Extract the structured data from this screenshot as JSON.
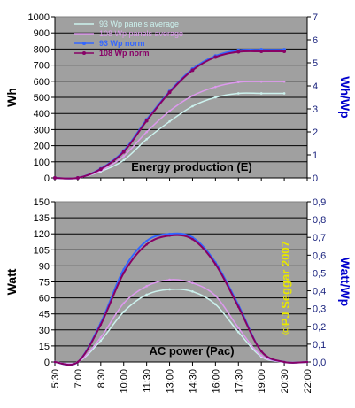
{
  "chart_data": [
    {
      "type": "line",
      "title": "Energy production (E)",
      "ylabel": "Wh",
      "y2label": "Wh/Wp",
      "ylim": [
        0,
        1000
      ],
      "y2lim": [
        0,
        7
      ],
      "yticks": [
        "0",
        "100",
        "200",
        "300",
        "400",
        "500",
        "600",
        "700",
        "800",
        "900",
        "1000"
      ],
      "y2ticks": [
        "0",
        "1",
        "2",
        "3",
        "4",
        "5",
        "6",
        "7"
      ],
      "x": [
        "5:30",
        "7:00",
        "8:30",
        "10:00",
        "11:30",
        "13:00",
        "14:30",
        "16:00",
        "17:30",
        "19:00",
        "20:30"
      ],
      "series": [
        {
          "name": "93 Wp panels average",
          "axis": "left",
          "color": "#ccf2ee",
          "marker": "line",
          "values": [
            0,
            0,
            40,
            110,
            240,
            350,
            445,
            500,
            525,
            525,
            525
          ]
        },
        {
          "name": "108 Wp panels average",
          "axis": "left",
          "color": "#dd99ee",
          "marker": "line",
          "values": [
            0,
            0,
            45,
            135,
            285,
            415,
            510,
            565,
            595,
            598,
            598
          ]
        },
        {
          "name": "93 Wp norm",
          "axis": "right",
          "color": "#3366ff",
          "marker": "dot",
          "values": [
            0,
            0,
            0.4,
            1.17,
            2.53,
            3.76,
            4.73,
            5.3,
            5.55,
            5.57,
            5.57
          ]
        },
        {
          "name": "108 Wp norm",
          "axis": "right",
          "color": "#880066",
          "marker": "dot",
          "values": [
            0,
            0,
            0.38,
            1.13,
            2.48,
            3.72,
            4.68,
            5.25,
            5.48,
            5.5,
            5.5
          ]
        }
      ]
    },
    {
      "type": "line",
      "title": "AC power (Pac)",
      "ylabel": "Watt",
      "y2label": "Watt/Wp",
      "ylim": [
        0,
        150
      ],
      "y2lim": [
        0,
        0.9
      ],
      "yticks": [
        "0",
        "15",
        "30",
        "45",
        "60",
        "75",
        "90",
        "105",
        "120",
        "135",
        "150"
      ],
      "y2ticks": [
        "0,0",
        "0,1",
        "0,2",
        "0,3",
        "0,4",
        "0,5",
        "0,6",
        "0,7",
        "0,8",
        "0,9"
      ],
      "x": [
        "5:30",
        "7:00",
        "8:30",
        "10:00",
        "11:30",
        "13:00",
        "14:30",
        "16:00",
        "17:30",
        "19:00",
        "20:30",
        "22:00"
      ],
      "series": [
        {
          "name": "93 Wp panels average",
          "axis": "left",
          "color": "#ccf2ee",
          "values": [
            0,
            0,
            20,
            47,
            63,
            68,
            66,
            54,
            28,
            5,
            0,
            0
          ]
        },
        {
          "name": "108 Wp panels average",
          "axis": "left",
          "color": "#dd99ee",
          "values": [
            0,
            0,
            23,
            55,
            71,
            77,
            74,
            62,
            32,
            6,
            0,
            0
          ]
        },
        {
          "name": "93 Wp norm",
          "axis": "right",
          "color": "#3366ff",
          "values": [
            0,
            0,
            0.22,
            0.52,
            0.68,
            0.72,
            0.7,
            0.56,
            0.32,
            0.06,
            0,
            0
          ]
        },
        {
          "name": "108 Wp norm",
          "axis": "right",
          "color": "#880066",
          "values": [
            0,
            0,
            0.21,
            0.5,
            0.66,
            0.71,
            0.69,
            0.55,
            0.31,
            0.06,
            0,
            0
          ]
        }
      ]
    }
  ],
  "copyright": "©PJ Seggar 2007",
  "colors": {
    "plot_bg": "#a0a0a0",
    "grid": "#000000",
    "right_axis": "#0000cc",
    "copyright": "#e8e800"
  }
}
